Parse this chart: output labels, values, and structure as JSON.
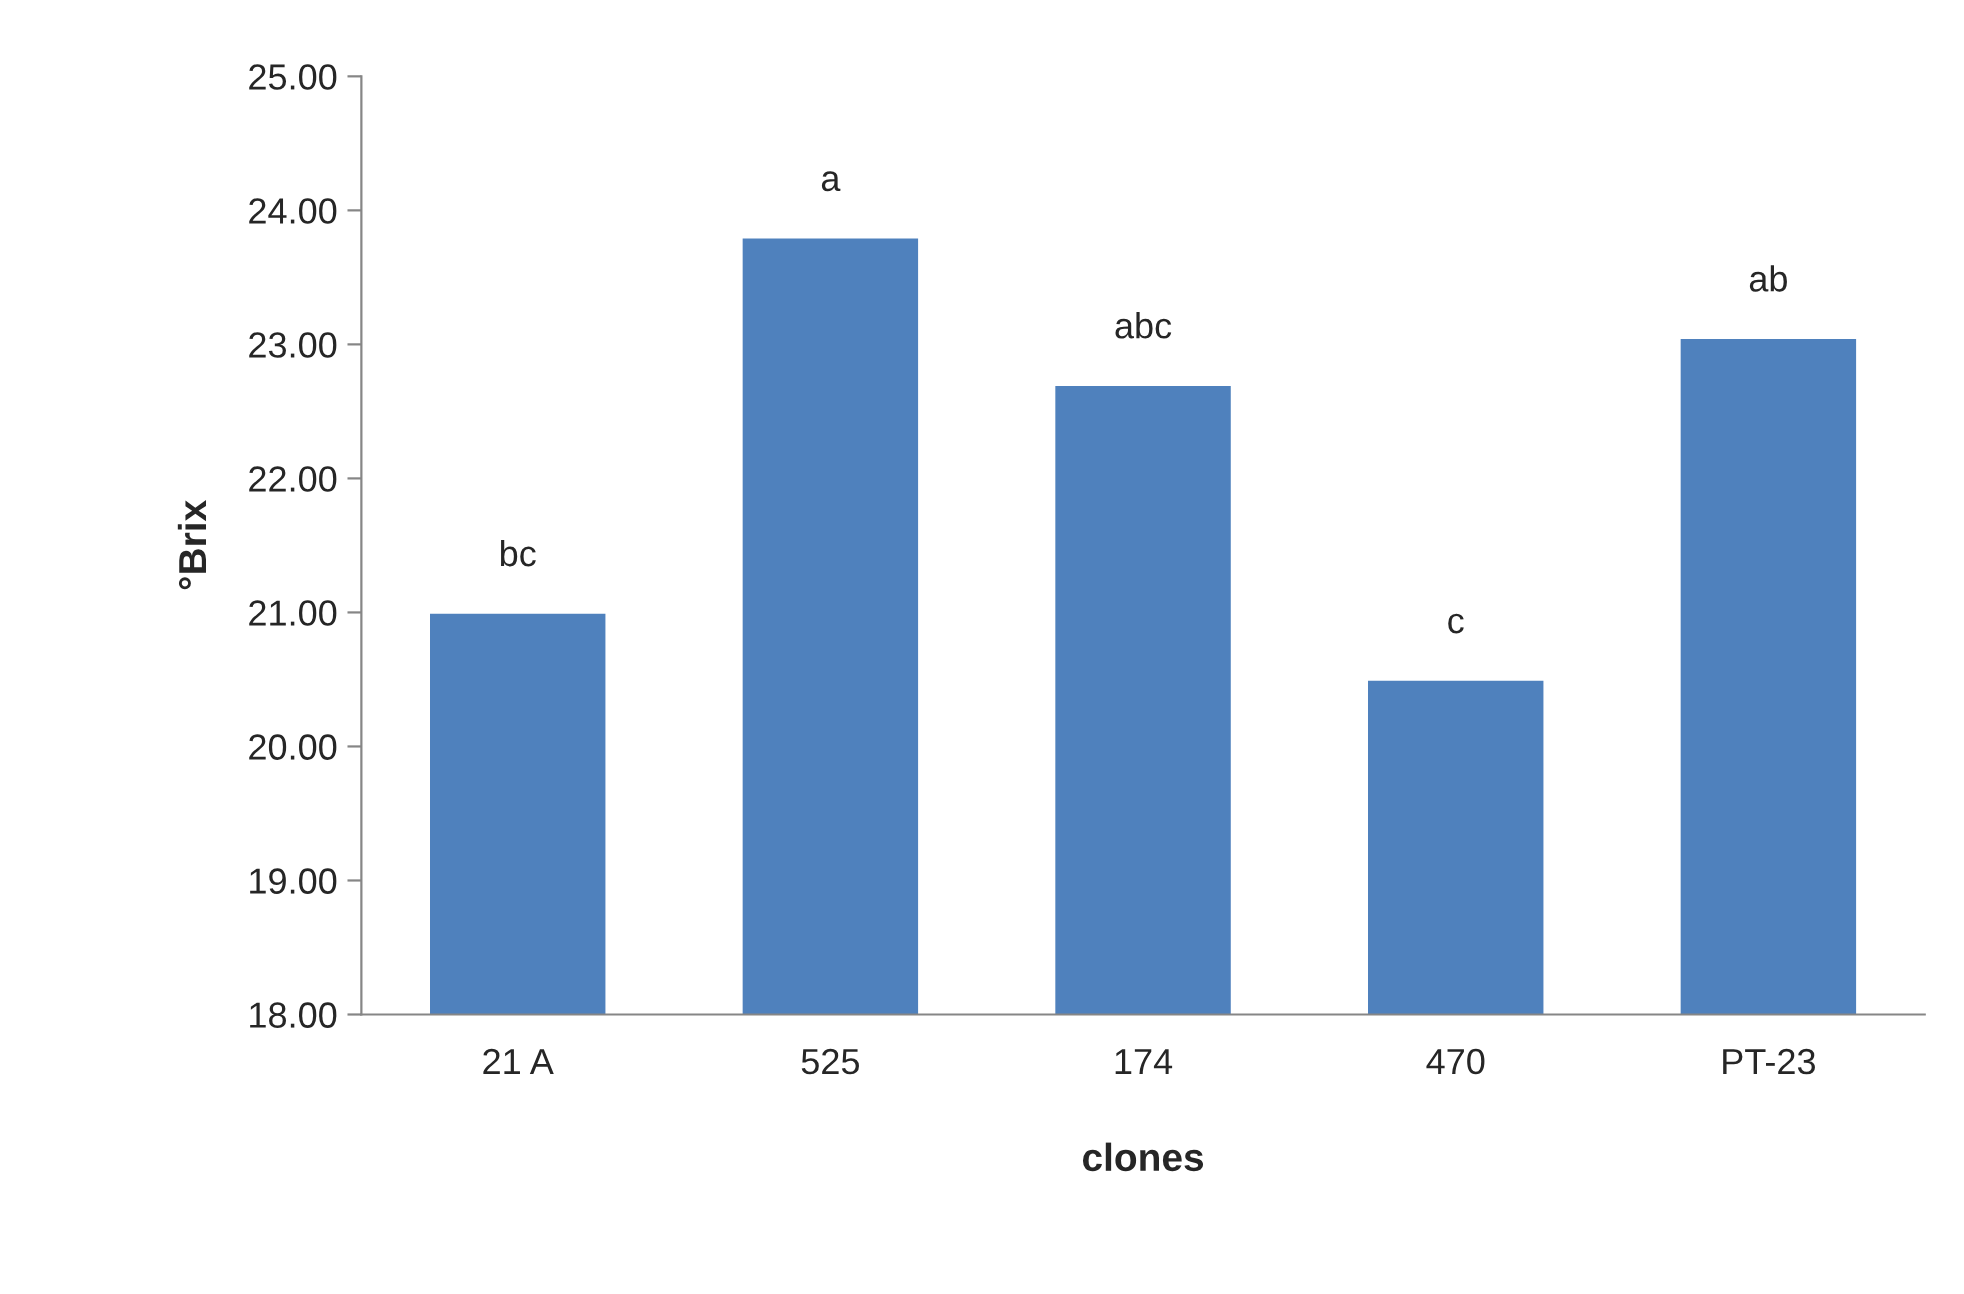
{
  "chart_data": {
    "type": "bar",
    "xlabel": "clones",
    "ylabel": "°Brix",
    "categories": [
      "21 A",
      "525",
      "174",
      "470",
      "PT-23"
    ],
    "values": [
      21.0,
      23.8,
      22.7,
      20.5,
      23.05
    ],
    "color": "#4f81bd",
    "ylim": [
      18,
      25
    ],
    "yticks": [
      {
        "value": 18,
        "label": "18.00"
      },
      {
        "value": 19,
        "label": "19.00"
      },
      {
        "value": 20,
        "label": "20.00"
      },
      {
        "value": 21,
        "label": "21.00"
      },
      {
        "value": 22,
        "label": "22.00"
      },
      {
        "value": 23,
        "label": "23.00"
      },
      {
        "value": 24,
        "label": "24.00"
      },
      {
        "value": 25,
        "label": "25.00"
      }
    ],
    "annotations": [
      {
        "text": "bc",
        "x": "21 A",
        "y": 21.0
      },
      {
        "text": "a",
        "x": "525",
        "y": 23.8
      },
      {
        "text": "abc",
        "x": "174",
        "y": 22.7
      },
      {
        "text": "c",
        "x": "470",
        "y": 20.5
      },
      {
        "text": "ab",
        "x": "PT-23",
        "y": 23.05
      }
    ],
    "grid": false,
    "legend": false
  }
}
